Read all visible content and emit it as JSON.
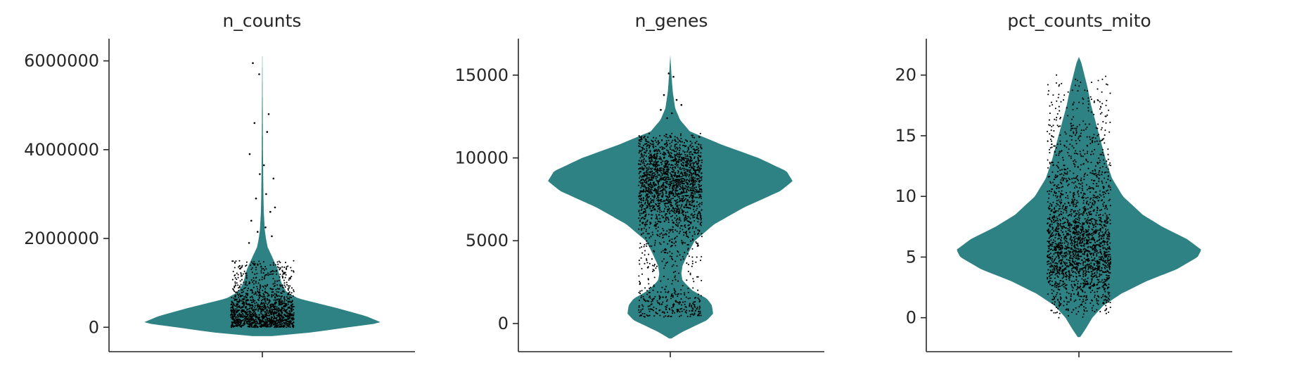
{
  "colors": {
    "violin_fill": "#2e8283",
    "point": "#000000",
    "axis": "#262626",
    "background": "#ffffff"
  },
  "chart_data": [
    {
      "type": "violin",
      "title": "n_counts",
      "xlabel": "",
      "ylabel": "",
      "ylim": [
        -550000,
        6500000
      ],
      "yticks": [
        0,
        2000000,
        4000000,
        6000000
      ],
      "ytick_labels": [
        "0",
        "2000000",
        "4000000",
        "6000000"
      ],
      "grid": false,
      "violin_extent": [
        -200000,
        6100000
      ],
      "density_profile": [
        [
          -200000,
          0.08
        ],
        [
          -120000,
          0.4
        ],
        [
          0,
          0.72
        ],
        [
          100000,
          1.0
        ],
        [
          250000,
          0.87
        ],
        [
          450000,
          0.6
        ],
        [
          650000,
          0.3
        ],
        [
          800000,
          0.2
        ],
        [
          1000000,
          0.16
        ],
        [
          1300000,
          0.13
        ],
        [
          1600000,
          0.08
        ],
        [
          1800000,
          0.045
        ],
        [
          2000000,
          0.03
        ],
        [
          2200000,
          0.02
        ],
        [
          2600000,
          0.012
        ],
        [
          3000000,
          0.009
        ],
        [
          4000000,
          0.005
        ],
        [
          5000000,
          0.003
        ],
        [
          6100000,
          0.001
        ]
      ],
      "points": {
        "count": 1500,
        "bulk": [
          0,
          1500000
        ],
        "outliers": [
          [
            -0.3,
            5950000
          ],
          [
            -0.1,
            5700000
          ],
          [
            0.2,
            4800000
          ],
          [
            -0.25,
            4600000
          ],
          [
            0.15,
            4400000
          ],
          [
            -0.4,
            3900000
          ],
          [
            0.35,
            3350000
          ],
          [
            0.05,
            3650000
          ],
          [
            -0.08,
            3450000
          ],
          [
            0.12,
            3000000
          ],
          [
            -0.2,
            2900000
          ],
          [
            0.4,
            2700000
          ],
          [
            0.25,
            2600000
          ],
          [
            -0.35,
            2400000
          ],
          [
            0.1,
            2250000
          ],
          [
            -0.15,
            2150000
          ],
          [
            0.3,
            2050000
          ],
          [
            -0.42,
            1900000
          ]
        ]
      }
    },
    {
      "type": "violin",
      "title": "n_genes",
      "xlabel": "",
      "ylabel": "",
      "ylim": [
        -1700,
        17200
      ],
      "yticks": [
        0,
        5000,
        10000,
        15000
      ],
      "ytick_labels": [
        "0",
        "5000",
        "10000",
        "15000"
      ],
      "grid": false,
      "violin_extent": [
        -900,
        16200
      ],
      "density_profile": [
        [
          -900,
          0.01
        ],
        [
          -500,
          0.1
        ],
        [
          200,
          0.3
        ],
        [
          600,
          0.35
        ],
        [
          1100,
          0.34
        ],
        [
          1500,
          0.3
        ],
        [
          2000,
          0.18
        ],
        [
          2600,
          0.1
        ],
        [
          3000,
          0.09
        ],
        [
          3500,
          0.1
        ],
        [
          4300,
          0.15
        ],
        [
          5000,
          0.2
        ],
        [
          6000,
          0.36
        ],
        [
          7000,
          0.6
        ],
        [
          8000,
          0.9
        ],
        [
          8600,
          1.0
        ],
        [
          9200,
          0.95
        ],
        [
          10000,
          0.72
        ],
        [
          10800,
          0.42
        ],
        [
          11600,
          0.16
        ],
        [
          12300,
          0.08
        ],
        [
          13000,
          0.04
        ],
        [
          14000,
          0.02
        ],
        [
          15000,
          0.01
        ],
        [
          16200,
          0.0
        ]
      ],
      "points": {
        "count": 2200,
        "bulk": [
          400,
          11500
        ],
        "outliers": [
          [
            -0.05,
            15100
          ],
          [
            0.1,
            14900
          ],
          [
            -0.2,
            13800
          ],
          [
            0.2,
            13500
          ],
          [
            0.35,
            13200
          ],
          [
            -0.3,
            12900
          ],
          [
            0.05,
            12700
          ],
          [
            -0.1,
            12400
          ]
        ]
      }
    },
    {
      "type": "violin",
      "title": "pct_counts_mito",
      "xlabel": "",
      "ylabel": "",
      "ylim": [
        -2.8,
        23
      ],
      "yticks": [
        0,
        5,
        10,
        15,
        20
      ],
      "ytick_labels": [
        "0",
        "5",
        "10",
        "15",
        "20"
      ],
      "grid": false,
      "violin_extent": [
        -1.6,
        21.5
      ],
      "density_profile": [
        [
          -1.6,
          0.01
        ],
        [
          -1,
          0.05
        ],
        [
          0,
          0.11
        ],
        [
          1,
          0.2
        ],
        [
          2,
          0.35
        ],
        [
          3,
          0.55
        ],
        [
          4,
          0.8
        ],
        [
          5,
          0.97
        ],
        [
          5.6,
          1.0
        ],
        [
          6.5,
          0.88
        ],
        [
          7.5,
          0.68
        ],
        [
          8.5,
          0.52
        ],
        [
          10,
          0.36
        ],
        [
          11.5,
          0.27
        ],
        [
          13,
          0.22
        ],
        [
          14.5,
          0.18
        ],
        [
          16,
          0.14
        ],
        [
          17.5,
          0.1
        ],
        [
          19,
          0.07
        ],
        [
          20.2,
          0.04
        ],
        [
          21,
          0.02
        ],
        [
          21.5,
          0.0
        ]
      ],
      "points": {
        "count": 2200,
        "bulk": [
          0,
          20
        ],
        "outliers": []
      }
    }
  ]
}
